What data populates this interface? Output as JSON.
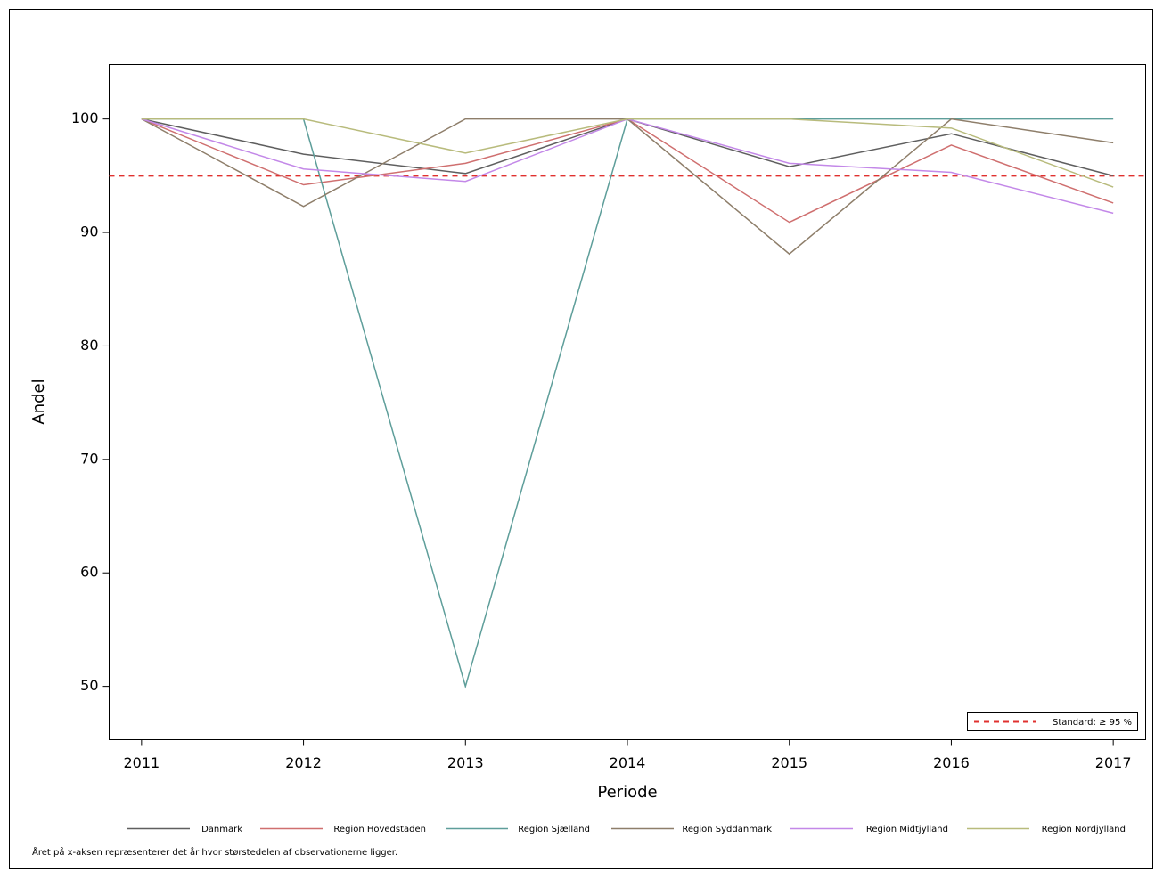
{
  "chart_data": {
    "type": "line",
    "x": [
      2011,
      2012,
      2013,
      2014,
      2015,
      2016,
      2017
    ],
    "xlim": [
      2010.8,
      2017.2
    ],
    "xticks": [
      2011,
      2012,
      2013,
      2014,
      2015,
      2016,
      2017
    ],
    "ylim": [
      45.3,
      104.8
    ],
    "yticks": [
      50,
      60,
      70,
      80,
      90,
      100
    ],
    "x_label": "Periode",
    "y_label": "Andel",
    "series": [
      {
        "name": "Danmark",
        "color": "#5f5f5f",
        "values": [
          100,
          96.9,
          95.2,
          100,
          95.8,
          98.7,
          95.0
        ]
      },
      {
        "name": "Region Hovedstaden",
        "color": "#cf6f6f",
        "values": [
          100,
          94.2,
          96.1,
          100,
          90.9,
          97.7,
          92.6
        ]
      },
      {
        "name": "Region Sjælland",
        "color": "#5e9e9a",
        "values": [
          100,
          100,
          50,
          100,
          100,
          100,
          100
        ]
      },
      {
        "name": "Region Syddanmark",
        "color": "#8e7e6a",
        "values": [
          100,
          92.3,
          100,
          100,
          88.1,
          100,
          97.9
        ]
      },
      {
        "name": "Region Midtjylland",
        "color": "#c388e8",
        "values": [
          100,
          95.6,
          94.5,
          100,
          96.1,
          95.3,
          91.7
        ]
      },
      {
        "name": "Region Nordjylland",
        "color": "#b8bb7c",
        "values": [
          100,
          100,
          97.0,
          100,
          100,
          99.2,
          94.0
        ]
      }
    ],
    "reference_lines": [
      {
        "value": 95,
        "label": "Standard: ≥ 95 %",
        "color": "#e0312f"
      }
    ],
    "footnote": "Året på x-aksen repræsenterer det år hvor størstedelen af observationerne ligger."
  }
}
